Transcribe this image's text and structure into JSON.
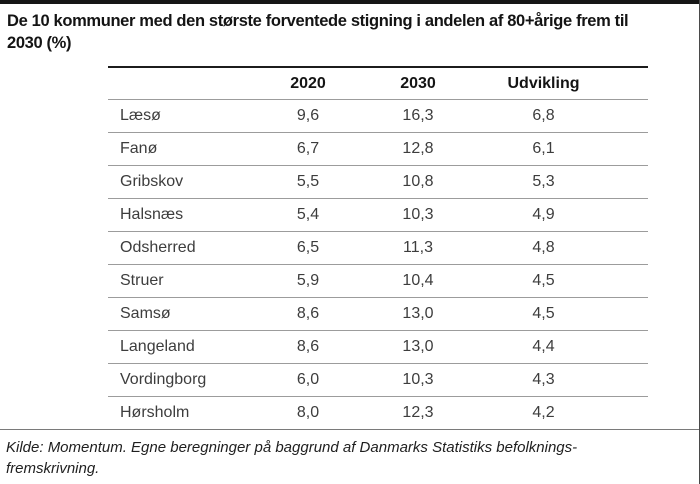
{
  "figure": {
    "title": "De 10 kommuner med den største forventede stigning i andelen af 80+årige frem til 2030 (%)",
    "source": "Kilde: Momentum. Egne beregninger på baggrund af Danmarks Statistiks befolknings-fremskrivning."
  },
  "chart_data": {
    "type": "table",
    "title": "De 10 kommuner med den største forventede stigning i andelen af 80+årige frem til 2030 (%)",
    "columns": [
      "",
      "2020",
      "2030",
      "Udvikling"
    ],
    "rows": [
      [
        "Læsø",
        "9,6",
        "16,3",
        "6,8"
      ],
      [
        "Fanø",
        "6,7",
        "12,8",
        "6,1"
      ],
      [
        "Gribskov",
        "5,5",
        "10,8",
        "5,3"
      ],
      [
        "Halsnæs",
        "5,4",
        "10,3",
        "4,9"
      ],
      [
        "Odsherred",
        "6,5",
        "11,3",
        "4,8"
      ],
      [
        "Struer",
        "5,9",
        "10,4",
        "4,5"
      ],
      [
        "Samsø",
        "8,6",
        "13,0",
        "4,5"
      ],
      [
        "Langeland",
        "8,6",
        "13,0",
        "4,4"
      ],
      [
        "Vordingborg",
        "6,0",
        "10,3",
        "4,3"
      ],
      [
        "Hørsholm",
        "8,0",
        "12,3",
        "4,2"
      ]
    ],
    "source": "Kilde: Momentum. Egne beregninger på baggrund af Danmarks Statistiks befolknings-fremskrivning.",
    "layout": {
      "grid": "horizontal-row-lines",
      "value_alignment": "center",
      "units": "percentage points"
    }
  },
  "colors": {
    "top_bar": "#161616",
    "table_top_line": "#1c1c1c",
    "row_line": "#9c9c9c",
    "separator_line": "#7a7a7a",
    "body_text": "#3d3d3d",
    "heading_text": "#141414"
  }
}
